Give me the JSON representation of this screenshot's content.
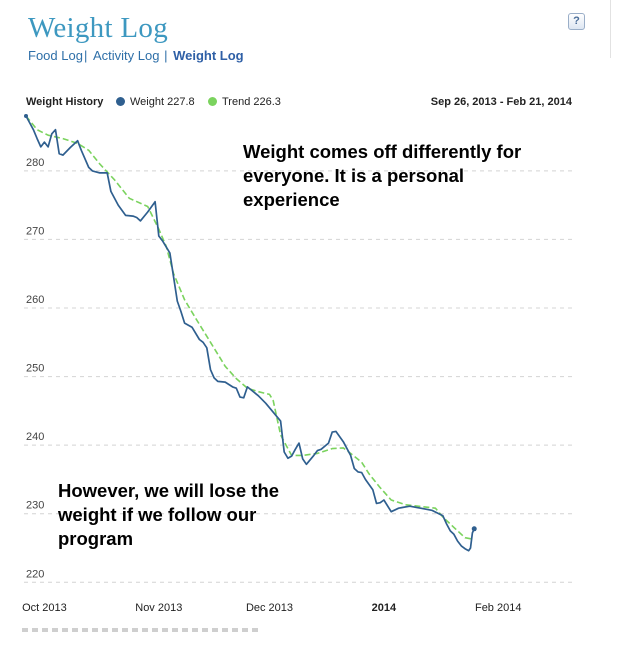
{
  "header": {
    "title": "Weight Log",
    "help_icon": "?"
  },
  "nav": {
    "items": [
      {
        "label": "Food Log",
        "active": false
      },
      {
        "label": "Activity Log",
        "active": false
      },
      {
        "label": "Weight Log",
        "active": true
      }
    ],
    "separator": "|"
  },
  "chart_header": {
    "label": "Weight History",
    "legend": [
      {
        "label": "Weight 227.8",
        "color": "#2f5f8f"
      },
      {
        "label": "Trend 226.3",
        "color": "#7bd35e"
      }
    ],
    "date_range": "Sep 26, 2013 - Feb 21, 2014"
  },
  "annotations": {
    "top": "Weight comes off differently for everyone. It is a personal experience",
    "bottom": "However, we will lose the weight if we follow our program"
  },
  "chart_data": {
    "type": "line",
    "title": "Weight History",
    "ylim": [
      218,
      288
    ],
    "xlim": [
      0,
      148
    ],
    "y_ticks": [
      220,
      230,
      240,
      250,
      260,
      270,
      280
    ],
    "x_ticks": [
      {
        "label": "Oct 2013",
        "x": 5,
        "bold": false
      },
      {
        "label": "Nov 2013",
        "x": 36,
        "bold": false
      },
      {
        "label": "Dec 2013",
        "x": 66,
        "bold": false
      },
      {
        "label": "2014",
        "x": 97,
        "bold": true
      },
      {
        "label": "Feb 2014",
        "x": 128,
        "bold": false
      }
    ],
    "grid": true,
    "series": [
      {
        "name": "Weight",
        "color": "#2f5f8f",
        "style": "solid",
        "points": [
          [
            0,
            288
          ],
          [
            2,
            286
          ],
          [
            3,
            284.7
          ],
          [
            4,
            283.5
          ],
          [
            5,
            284.2
          ],
          [
            6,
            283.5
          ],
          [
            7,
            285.4
          ],
          [
            8,
            286
          ],
          [
            9,
            282.5
          ],
          [
            10,
            282.3
          ],
          [
            12,
            283.4
          ],
          [
            14,
            284.4
          ],
          [
            15,
            283
          ],
          [
            17,
            280.5
          ],
          [
            18,
            280
          ],
          [
            20,
            279.7
          ],
          [
            22,
            279.7
          ],
          [
            23,
            277
          ],
          [
            25,
            275
          ],
          [
            27,
            273.5
          ],
          [
            29,
            273.4
          ],
          [
            30,
            273.2
          ],
          [
            31,
            272.7
          ],
          [
            33,
            274
          ],
          [
            35,
            275.5
          ],
          [
            36,
            270.5
          ],
          [
            37,
            269.8
          ],
          [
            39,
            268
          ],
          [
            40,
            264.5
          ],
          [
            41,
            261
          ],
          [
            42,
            259.5
          ],
          [
            43,
            257.8
          ],
          [
            45,
            257.2
          ],
          [
            47,
            255.4
          ],
          [
            48,
            255
          ],
          [
            49,
            254.2
          ],
          [
            50,
            251
          ],
          [
            51,
            249.8
          ],
          [
            52,
            249.3
          ],
          [
            54,
            249.2
          ],
          [
            56,
            248.5
          ],
          [
            57,
            248.3
          ],
          [
            58,
            247
          ],
          [
            59,
            246.9
          ],
          [
            60,
            248.5
          ],
          [
            63,
            247.2
          ],
          [
            65,
            246.1
          ],
          [
            67,
            244.8
          ],
          [
            69,
            243.5
          ],
          [
            70,
            239
          ],
          [
            71,
            238.1
          ],
          [
            72,
            238.4
          ],
          [
            73,
            239.4
          ],
          [
            74,
            240.3
          ],
          [
            75,
            238
          ],
          [
            76,
            237.2
          ],
          [
            78,
            238.5
          ],
          [
            79,
            239.2
          ],
          [
            80,
            239.4
          ],
          [
            82,
            240.3
          ],
          [
            83,
            241.9
          ],
          [
            84,
            242
          ],
          [
            86,
            240.5
          ],
          [
            88,
            238.5
          ],
          [
            89,
            236.6
          ],
          [
            90,
            236.1
          ],
          [
            91,
            236
          ],
          [
            92,
            235
          ],
          [
            94,
            233.5
          ],
          [
            95,
            231.5
          ],
          [
            96,
            231.6
          ],
          [
            97,
            232
          ],
          [
            99,
            230.3
          ],
          [
            101,
            230.8
          ],
          [
            102,
            230.9
          ],
          [
            104,
            231.1
          ],
          [
            107,
            230.8
          ],
          [
            110,
            230.5
          ],
          [
            113,
            229.7
          ],
          [
            114,
            228.5
          ],
          [
            115,
            227.5
          ],
          [
            116,
            227
          ],
          [
            117,
            226
          ],
          [
            118,
            225.3
          ],
          [
            119,
            224.9
          ],
          [
            120,
            224.6
          ],
          [
            120.5,
            225
          ],
          [
            121,
            227.2
          ],
          [
            121.5,
            227.8
          ]
        ]
      },
      {
        "name": "Trend",
        "color": "#7bd35e",
        "style": "dashed",
        "points": [
          [
            0,
            288
          ],
          [
            3,
            286
          ],
          [
            6,
            285.2
          ],
          [
            10,
            284.7
          ],
          [
            14,
            284
          ],
          [
            17,
            283
          ],
          [
            20,
            281
          ],
          [
            24,
            278.7
          ],
          [
            28,
            276
          ],
          [
            33,
            274.8
          ],
          [
            36,
            271.5
          ],
          [
            38,
            269
          ],
          [
            40,
            265
          ],
          [
            43,
            261.2
          ],
          [
            46,
            258.5
          ],
          [
            50,
            255
          ],
          [
            54,
            251.5
          ],
          [
            57,
            249.7
          ],
          [
            60,
            248.3
          ],
          [
            63,
            247.8
          ],
          [
            66,
            247.4
          ],
          [
            67,
            246.5
          ],
          [
            69,
            241.5
          ],
          [
            70,
            240.5
          ],
          [
            72,
            238.5
          ],
          [
            75,
            238.5
          ],
          [
            79,
            238.8
          ],
          [
            83,
            239.5
          ],
          [
            86,
            239.6
          ],
          [
            88,
            238.8
          ],
          [
            91,
            237.5
          ],
          [
            93,
            235.8
          ],
          [
            96,
            233.8
          ],
          [
            99,
            232
          ],
          [
            103,
            231.3
          ],
          [
            108,
            231
          ],
          [
            111,
            230.8
          ],
          [
            113,
            229.5
          ],
          [
            116,
            228
          ],
          [
            119,
            226.5
          ],
          [
            121,
            226.3
          ]
        ]
      }
    ]
  }
}
